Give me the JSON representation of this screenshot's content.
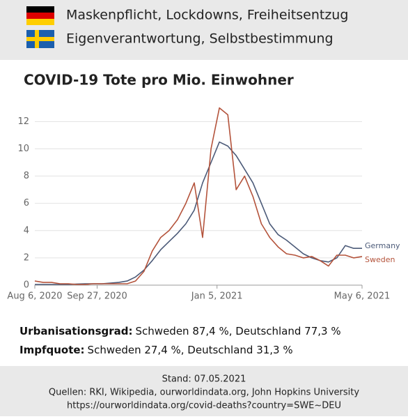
{
  "header": {
    "germany": "Maskenpflicht, Lockdowns, Freiheitsentzug",
    "sweden": "Eigenverantwortung, Selbstbestimmung"
  },
  "chart_data": {
    "type": "line",
    "title": "COVID-19 Tote pro Mio. Einwohner",
    "x": [
      "2020-08-06",
      "2020-08-13",
      "2020-08-20",
      "2020-08-27",
      "2020-09-03",
      "2020-09-10",
      "2020-09-17",
      "2020-09-24",
      "2020-10-01",
      "2020-10-08",
      "2020-10-15",
      "2020-10-22",
      "2020-10-29",
      "2020-11-05",
      "2020-11-12",
      "2020-11-19",
      "2020-11-26",
      "2020-12-03",
      "2020-12-10",
      "2020-12-17",
      "2020-12-24",
      "2020-12-31",
      "2021-01-07",
      "2021-01-14",
      "2021-01-21",
      "2021-01-28",
      "2021-02-04",
      "2021-02-11",
      "2021-02-18",
      "2021-02-25",
      "2021-03-04",
      "2021-03-11",
      "2021-03-18",
      "2021-03-25",
      "2021-04-01",
      "2021-04-08",
      "2021-04-15",
      "2021-04-22",
      "2021-04-29",
      "2021-05-06"
    ],
    "series": [
      {
        "name": "Germany",
        "color": "#4b5a78",
        "values": [
          0.05,
          0.05,
          0.05,
          0.05,
          0.05,
          0.08,
          0.1,
          0.1,
          0.1,
          0.15,
          0.2,
          0.3,
          0.6,
          1.1,
          1.8,
          2.6,
          3.2,
          3.8,
          4.5,
          5.5,
          7.5,
          9.0,
          10.5,
          10.2,
          9.5,
          8.5,
          7.5,
          6.0,
          4.5,
          3.7,
          3.3,
          2.8,
          2.3,
          2.0,
          1.8,
          1.7,
          2.0,
          2.9,
          2.7,
          2.7
        ]
      },
      {
        "name": "Sweden",
        "color": "#b4533b",
        "values": [
          0.3,
          0.2,
          0.2,
          0.1,
          0.1,
          0.05,
          0.05,
          0.1,
          0.1,
          0.1,
          0.1,
          0.1,
          0.3,
          1.0,
          2.5,
          3.5,
          4.0,
          4.8,
          6.0,
          7.5,
          3.5,
          10.0,
          13.0,
          12.5,
          7.0,
          8.0,
          6.5,
          4.5,
          3.5,
          2.8,
          2.3,
          2.2,
          2.0,
          2.1,
          1.8,
          1.4,
          2.2,
          2.2,
          2.0,
          2.1
        ]
      }
    ],
    "xlim": [
      "2020-08-06",
      "2021-05-06"
    ],
    "xticks": [
      {
        "value": "2020-08-06",
        "label": "Aug 6, 2020"
      },
      {
        "value": "2020-09-27",
        "label": "Sep 27, 2020"
      },
      {
        "value": "2021-01-05",
        "label": "Jan 5, 2021"
      },
      {
        "value": "2021-05-06",
        "label": "May 6, 2021"
      }
    ],
    "ylim": [
      0,
      13.5
    ],
    "yticks": [
      0,
      2,
      4,
      6,
      8,
      10,
      12
    ],
    "grid": true
  },
  "notes": {
    "urbanisation": {
      "label": "Urbanisationsgrad:",
      "text": "Schweden 87,4 %, Deutschland 77,3 %"
    },
    "vaccination": {
      "label": "Impfquote:",
      "text": "Schweden 27,4 %, Deutschland 31,3 %"
    }
  },
  "footer": {
    "stand": "Stand: 07.05.2021",
    "sources": "Quellen: RKI, Wikipedia, ourworldindata.org, John Hopkins University",
    "url": "https://ourworldindata.org/covid-deaths?country=SWE~DEU"
  }
}
